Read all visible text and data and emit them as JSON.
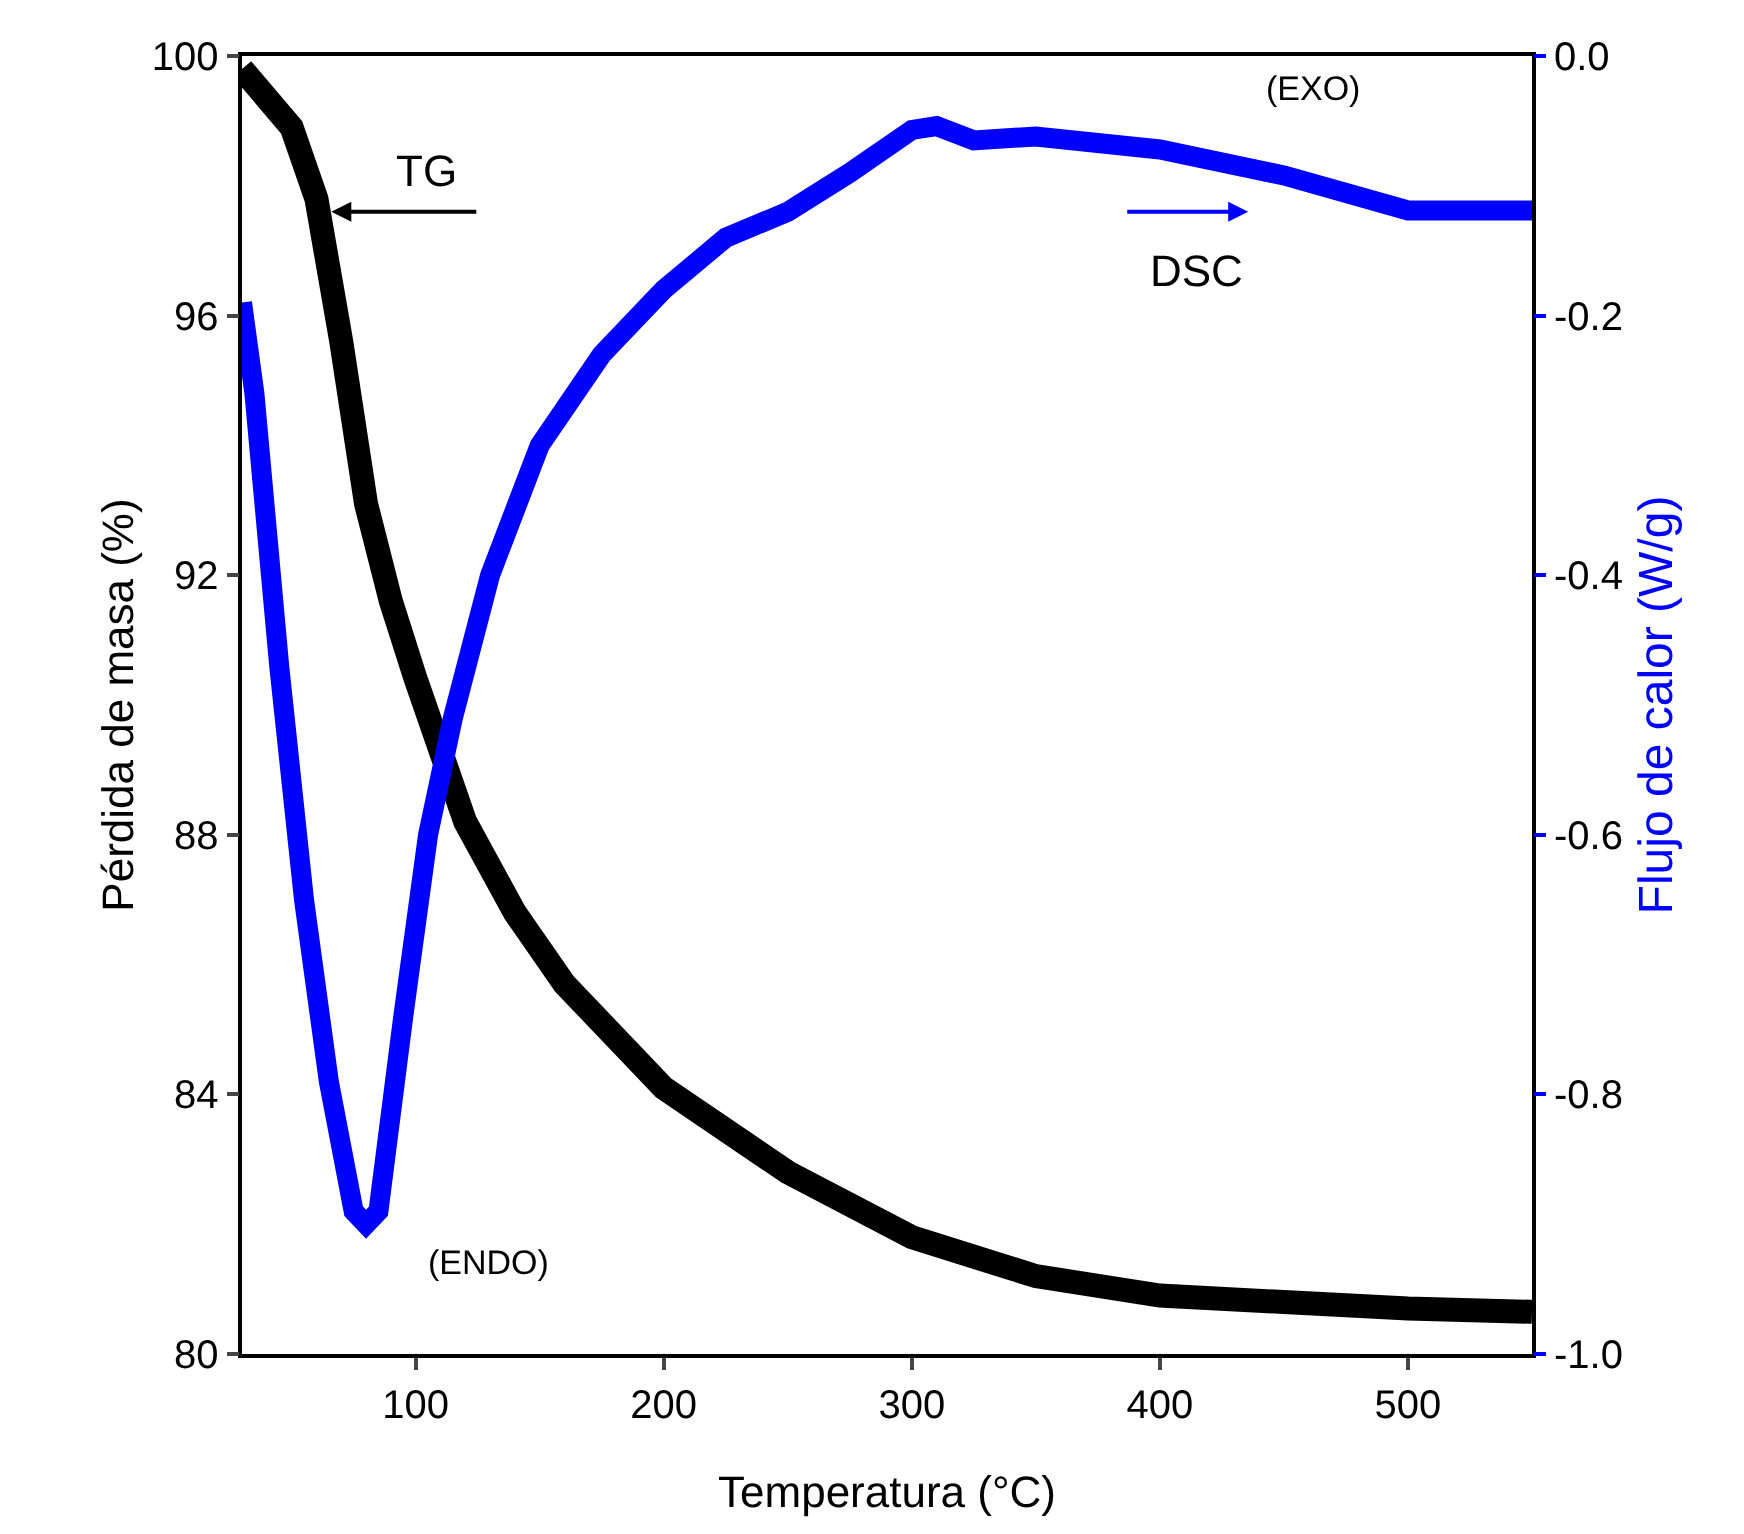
{
  "chart_data": {
    "type": "line",
    "xlabel": "Temperatura (°C)",
    "ylabel": "Pérdida de masa (%)",
    "y2label": "Flujo de calor (W/g)",
    "xlim": [
      30,
      550
    ],
    "xticks": [
      100,
      200,
      300,
      400,
      500
    ],
    "ylim": [
      80,
      100
    ],
    "yticks": [
      80,
      84,
      88,
      92,
      96,
      100
    ],
    "y2lim": [
      -1.0,
      0.0
    ],
    "y2ticks": [
      {
        "value": -1,
        "label": "-1.0"
      },
      {
        "value": -0.8,
        "label": "-0.8"
      },
      {
        "value": -0.6,
        "label": "-0.6"
      },
      {
        "value": -0.4,
        "label": "-0.4"
      },
      {
        "value": -0.2,
        "label": "-0.2"
      },
      {
        "value": 0,
        "label": "0.0"
      }
    ],
    "grid": false,
    "line_style": "solid",
    "marker": "none",
    "annotations": [
      {
        "text": "TG",
        "x": 66,
        "y": 97.6
      },
      "DSC",
      "(ENDO)",
      "(EXO)"
    ],
    "series": [
      {
        "color": "#000000",
        "x": [
          30,
          50,
          60,
          70,
          80,
          90,
          100,
          120,
          140,
          160,
          200,
          250,
          300,
          350,
          400,
          450,
          500,
          550
        ],
        "values": [
          99.8,
          98.9,
          97.8,
          95.6,
          93.1,
          91.6,
          90.4,
          88.2,
          86.8,
          85.7,
          84.1,
          82.8,
          81.8,
          81.2,
          80.9,
          80.8,
          80.7,
          80.65
        ]
      },
      {
        "color": "#0000ff",
        "axis": "y2",
        "x": [
          30,
          35,
          45,
          55,
          65,
          75,
          80,
          85,
          95,
          105,
          115,
          130,
          150,
          175,
          200,
          225,
          250,
          275,
          300,
          310,
          325,
          350,
          400,
          450,
          500,
          550
        ],
        "values": [
          -0.19,
          -0.26,
          -0.47,
          -0.65,
          -0.79,
          -0.89,
          -0.9,
          -0.89,
          -0.74,
          -0.6,
          -0.51,
          -0.4,
          -0.3,
          -0.23,
          -0.18,
          -0.14,
          -0.12,
          -0.09,
          -0.057,
          -0.054,
          -0.065,
          -0.062,
          -0.072,
          -0.092,
          -0.119,
          -0.119
        ]
      }
    ]
  }
}
